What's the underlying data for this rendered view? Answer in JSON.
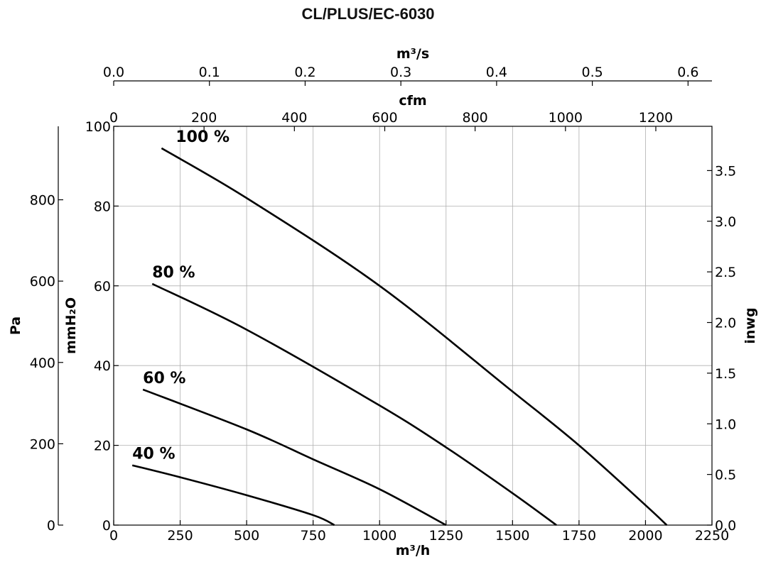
{
  "chart_data": {
    "type": "line",
    "title": "CL/PLUS/EC-6030",
    "xlabel": "m³/h",
    "xlim": [
      0,
      2250
    ],
    "x_ticks": [
      "0",
      "250",
      "500",
      "750",
      "1000",
      "1250",
      "1500",
      "1750",
      "2000",
      "2250"
    ],
    "ylabel": "mmH₂O",
    "ylim": [
      0,
      100
    ],
    "y_ticks": [
      "0",
      "20",
      "40",
      "60",
      "80",
      "100"
    ],
    "grid": true,
    "secondary_axes": {
      "top_flow_m3s": {
        "label": "m³/s",
        "ticks": [
          "0.0",
          "0.1",
          "0.2",
          "0.3",
          "0.4",
          "0.5",
          "0.6"
        ]
      },
      "top_flow_cfm": {
        "label": "cfm",
        "ticks": [
          "0",
          "200",
          "400",
          "600",
          "800",
          "1000",
          "1200"
        ]
      },
      "left_pressure_pa": {
        "label": "Pa",
        "ticks": [
          "0",
          "200",
          "400",
          "600",
          "800"
        ]
      },
      "right_pressure_inwg": {
        "label": "inwg",
        "ticks": [
          "0.0",
          "0.5",
          "1.0",
          "1.5",
          "2.0",
          "2.5",
          "3.0",
          "3.5"
        ]
      }
    },
    "series": [
      {
        "name": "100 %",
        "x": [
          180,
          500,
          1000,
          1500,
          1750,
          2000,
          2080
        ],
        "y": [
          94.5,
          82,
          60,
          33.5,
          20,
          5,
          0
        ]
      },
      {
        "name": "80 %",
        "x": [
          145,
          500,
          1000,
          1250,
          1500,
          1665
        ],
        "y": [
          60.5,
          49,
          30,
          19.5,
          8,
          0
        ]
      },
      {
        "name": "60 %",
        "x": [
          110,
          500,
          750,
          1000,
          1250
        ],
        "y": [
          34,
          24,
          16.5,
          9,
          0
        ]
      },
      {
        "name": "40 %",
        "x": [
          70,
          250,
          500,
          750,
          830
        ],
        "y": [
          15,
          12,
          7.5,
          2.5,
          0
        ]
      }
    ]
  }
}
